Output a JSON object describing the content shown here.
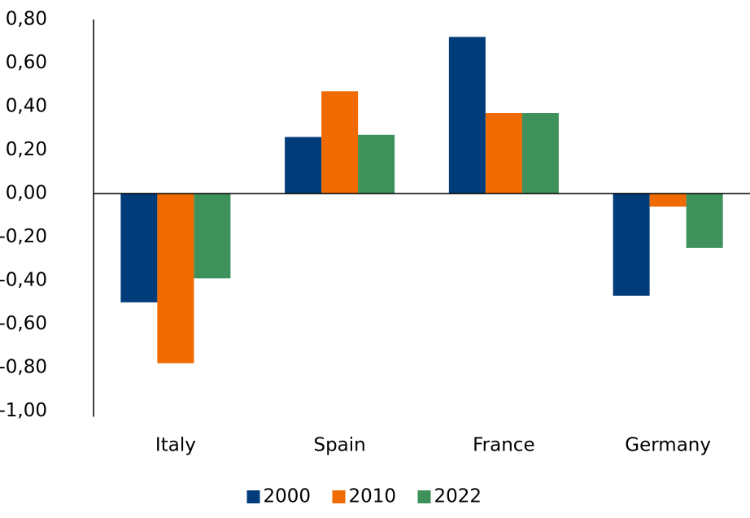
{
  "chart_data": {
    "type": "bar",
    "categories": [
      "Italy",
      "Spain",
      "France",
      "Germany"
    ],
    "series": [
      {
        "name": "2000",
        "color": "#003b7a",
        "values": [
          -0.5,
          0.26,
          0.72,
          -0.47
        ]
      },
      {
        "name": "2010",
        "color": "#ef6a00",
        "values": [
          -0.78,
          0.47,
          0.37,
          -0.06
        ]
      },
      {
        "name": "2022",
        "color": "#3e915a",
        "values": [
          -0.39,
          0.27,
          0.37,
          -0.25
        ]
      }
    ],
    "ylim": [
      -1.0,
      0.8
    ],
    "yticks": [
      {
        "value": -1.0,
        "label": "-1,00"
      },
      {
        "value": -0.8,
        "label": "-0,80"
      },
      {
        "value": -0.6,
        "label": "-0,60"
      },
      {
        "value": -0.4,
        "label": "-0,40"
      },
      {
        "value": -0.2,
        "label": "-0,20"
      },
      {
        "value": 0,
        "label": "0,00"
      },
      {
        "value": 0.2,
        "label": "0,20"
      },
      {
        "value": 0.4,
        "label": "0,40"
      },
      {
        "value": 0.6,
        "label": "0,60"
      },
      {
        "value": 0.8,
        "label": "0,80"
      }
    ],
    "grid": false,
    "legend": "bottom"
  }
}
